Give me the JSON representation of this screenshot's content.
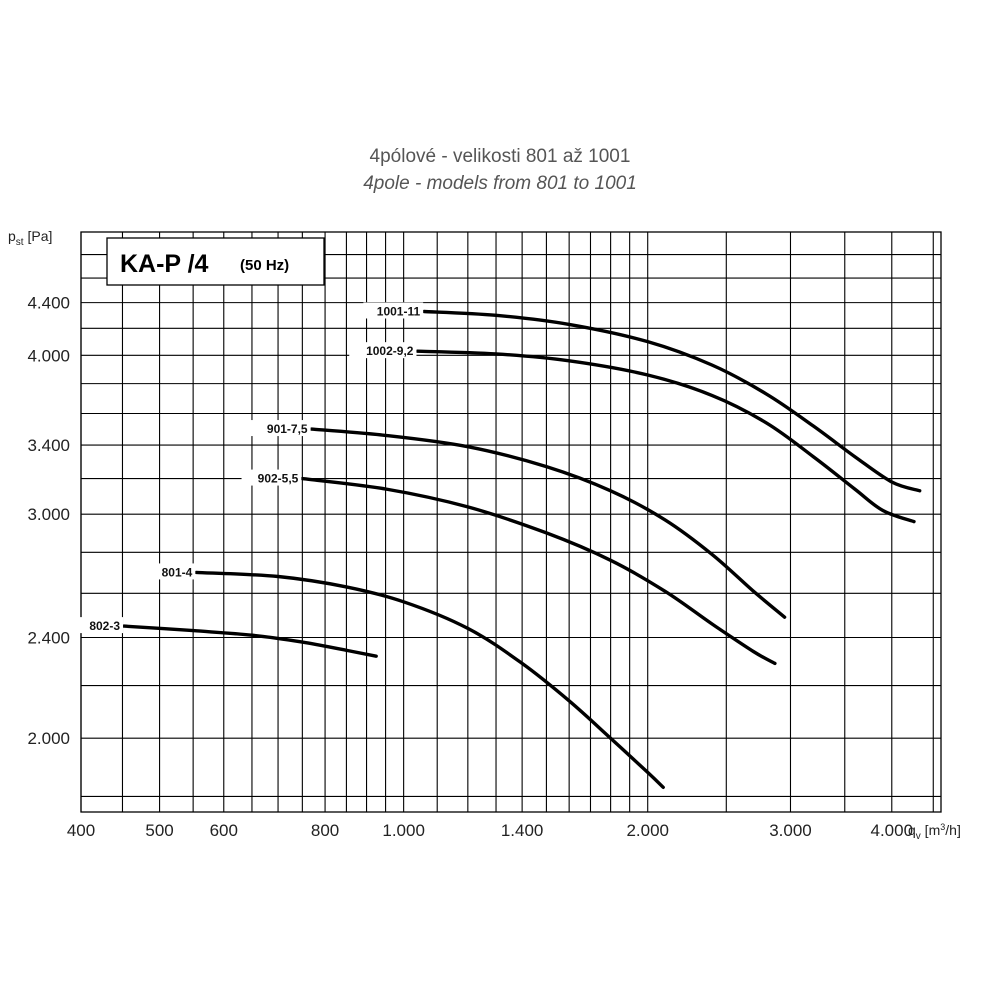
{
  "title_cs": "4pólové - velikosti 801 až 1001",
  "title_en": "4pole - models from 801 to 1001",
  "badge": {
    "main": "KA-P /4",
    "sub": "(50 Hz)"
  },
  "axes": {
    "y_label_main": "p",
    "y_label_sub": "st",
    "y_label_unit": " [Pa]",
    "x_label_main": "q",
    "x_label_sub": "v",
    "x_label_unit_pre": " [m",
    "x_label_unit_sup": "3",
    "x_label_unit_post": "/h]"
  },
  "chart_data": {
    "type": "line",
    "x_scale": "log",
    "y_scale": "log",
    "xlim": [
      400,
      4600
    ],
    "ylim": [
      1750,
      5000
    ],
    "xlabel": "qv [m3/h]",
    "ylabel": "pst [Pa]",
    "x_ticks": [
      {
        "value": 400,
        "label": "400"
      },
      {
        "value": 500,
        "label": "500"
      },
      {
        "value": 600,
        "label": "600"
      },
      {
        "value": 800,
        "label": "800"
      },
      {
        "value": 1000,
        "label": "1.000"
      },
      {
        "value": 1400,
        "label": "1.400"
      },
      {
        "value": 2000,
        "label": "2.000"
      },
      {
        "value": 3000,
        "label": "3.000"
      },
      {
        "value": 4000,
        "label": "4.000"
      }
    ],
    "y_ticks": [
      {
        "value": 2000,
        "label": "2.000"
      },
      {
        "value": 2400,
        "label": "2.400"
      },
      {
        "value": 3000,
        "label": "3.000"
      },
      {
        "value": 3400,
        "label": "3.400"
      },
      {
        "value": 4000,
        "label": "4.000"
      },
      {
        "value": 4400,
        "label": "4.400"
      }
    ],
    "grid": true,
    "series": [
      {
        "name": "1001-11",
        "points": [
          [
            1060,
            4330
          ],
          [
            1300,
            4300
          ],
          [
            1600,
            4230
          ],
          [
            2000,
            4100
          ],
          [
            2400,
            3930
          ],
          [
            2800,
            3730
          ],
          [
            3200,
            3520
          ],
          [
            3600,
            3330
          ],
          [
            4000,
            3180
          ],
          [
            4330,
            3130
          ]
        ]
      },
      {
        "name": "1002-9,2",
        "points": [
          [
            1040,
            4030
          ],
          [
            1300,
            4010
          ],
          [
            1600,
            3960
          ],
          [
            2000,
            3860
          ],
          [
            2400,
            3720
          ],
          [
            2800,
            3540
          ],
          [
            3200,
            3330
          ],
          [
            3600,
            3140
          ],
          [
            3900,
            3020
          ],
          [
            4260,
            2960
          ]
        ]
      },
      {
        "name": "901-7,5",
        "points": [
          [
            770,
            3500
          ],
          [
            950,
            3460
          ],
          [
            1200,
            3390
          ],
          [
            1500,
            3270
          ],
          [
            1800,
            3130
          ],
          [
            2100,
            2970
          ],
          [
            2400,
            2790
          ],
          [
            2700,
            2610
          ],
          [
            2950,
            2490
          ]
        ]
      },
      {
        "name": "902-5,5",
        "points": [
          [
            750,
            3200
          ],
          [
            950,
            3140
          ],
          [
            1200,
            3040
          ],
          [
            1500,
            2900
          ],
          [
            1800,
            2760
          ],
          [
            2100,
            2610
          ],
          [
            2400,
            2460
          ],
          [
            2700,
            2340
          ],
          [
            2870,
            2290
          ]
        ]
      },
      {
        "name": "801-4",
        "points": [
          [
            555,
            2700
          ],
          [
            700,
            2680
          ],
          [
            850,
            2630
          ],
          [
            1000,
            2560
          ],
          [
            1200,
            2440
          ],
          [
            1400,
            2290
          ],
          [
            1600,
            2140
          ],
          [
            1800,
            2000
          ],
          [
            2000,
            1880
          ],
          [
            2090,
            1830
          ]
        ]
      },
      {
        "name": "802-3",
        "points": [
          [
            452,
            2450
          ],
          [
            550,
            2430
          ],
          [
            650,
            2410
          ],
          [
            750,
            2380
          ],
          [
            850,
            2345
          ],
          [
            925,
            2320
          ]
        ]
      }
    ]
  }
}
